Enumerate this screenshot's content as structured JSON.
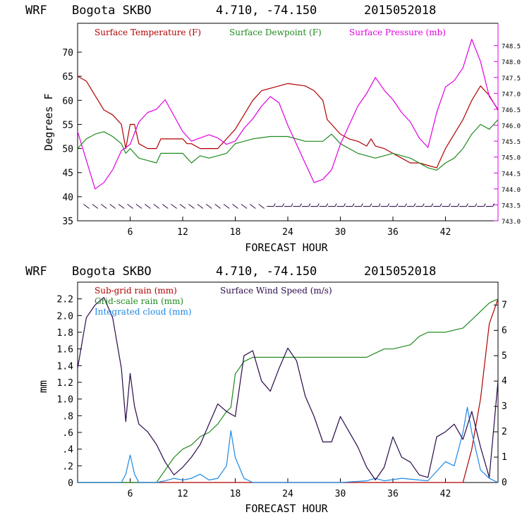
{
  "colors": {
    "temperature": "#b00000",
    "dewpoint": "#1f8a1f",
    "pressure": "#e000e0",
    "subgrid": "#b00000",
    "gridscale": "#1f8a1f",
    "cloud": "#1e88e5",
    "wind": "#2a0a4a"
  },
  "chart_data": [
    {
      "type": "line",
      "header": {
        "model": "WRF",
        "station": "Bogota SKBO",
        "coords": "4.710, -74.150",
        "init": "2015052018"
      },
      "xlabel": "FORECAST HOUR",
      "ylabel": "Degrees F",
      "xlim": [
        0,
        48
      ],
      "ylim": [
        35,
        76
      ],
      "x_ticks": [
        6,
        12,
        18,
        24,
        30,
        36,
        42
      ],
      "x_tick_labels": [
        "6",
        "12",
        "18",
        "24",
        "30",
        "36",
        "42"
      ],
      "y_ticks": [
        35,
        40,
        45,
        50,
        55,
        60,
        65,
        70
      ],
      "y_tick_labels": [
        "35",
        "40",
        "45",
        "50",
        "55",
        "60",
        "65",
        "70"
      ],
      "y2label": "",
      "y2lim": [
        743.0,
        749.2
      ],
      "y2_ticks": [
        743.0,
        743.5,
        744.0,
        744.5,
        745.0,
        745.5,
        746.0,
        746.5,
        747.0,
        747.5,
        748.0,
        748.5
      ],
      "y2_tick_labels": [
        "743.0",
        "743.5",
        "744.0",
        "744.5",
        "745.0",
        "745.5",
        "746.0",
        "746.5",
        "747.0",
        "747.5",
        "748.0",
        "748.5"
      ],
      "legend": [
        "Surface Temperature (F)",
        "Surface Dewpoint (F)",
        "Surface Pressure (mb)"
      ],
      "series": [
        {
          "name": "Surface Temperature (F)",
          "axis": "left",
          "x": [
            0,
            1,
            2,
            3,
            4,
            5,
            5.5,
            6,
            6.5,
            7,
            8,
            9,
            9.5,
            10,
            11,
            12,
            12.5,
            13,
            14,
            15,
            16,
            17,
            17.5,
            18,
            19,
            20,
            21,
            22,
            24,
            26,
            27,
            28,
            28.5,
            29,
            30,
            31,
            32,
            33,
            33.5,
            34,
            35,
            36,
            37,
            38,
            39,
            40,
            41,
            42,
            43,
            44,
            45,
            46,
            47,
            48
          ],
          "values": [
            65,
            64,
            61,
            58,
            57,
            55,
            50,
            55,
            55,
            51,
            50,
            50,
            52,
            52,
            52,
            52,
            51,
            51,
            50,
            50,
            50,
            52,
            53,
            54,
            57,
            60,
            62,
            62.5,
            63.5,
            63,
            62,
            60,
            56,
            55,
            53,
            52,
            51.5,
            50.5,
            52,
            50.5,
            50,
            49,
            48,
            47,
            47,
            46.5,
            46,
            50,
            53,
            56,
            60,
            63,
            61,
            58
          ]
        },
        {
          "name": "Surface Dewpoint (F)",
          "axis": "left",
          "x": [
            0,
            1,
            2,
            3,
            4,
            5,
            5.5,
            6,
            7,
            8,
            9,
            9.5,
            10,
            11,
            12,
            12.5,
            13,
            14,
            15,
            16,
            17,
            17.5,
            18,
            19,
            20,
            22,
            24,
            26,
            28,
            29,
            30,
            32,
            34,
            35,
            36,
            38,
            40,
            41,
            42,
            43,
            44,
            45,
            46,
            47,
            48
          ],
          "values": [
            50,
            52,
            53,
            53.5,
            52.5,
            51,
            49,
            50,
            48,
            47.5,
            47,
            49,
            49,
            49,
            49,
            48,
            47,
            48.5,
            48,
            48.5,
            49,
            50,
            51,
            51.5,
            52,
            52.5,
            52.5,
            51.5,
            51.5,
            53,
            51,
            49,
            48,
            48.5,
            49,
            48,
            46,
            45.5,
            47,
            48,
            50,
            53,
            55,
            54,
            56
          ]
        },
        {
          "name": "Surface Pressure (mb)",
          "axis": "right",
          "x": [
            0,
            1,
            2,
            3,
            4,
            5,
            6,
            7,
            8,
            9,
            10,
            11,
            12,
            13,
            14,
            15,
            16,
            17,
            18,
            19,
            20,
            21,
            22,
            23,
            24,
            25,
            26,
            27,
            28,
            29,
            30,
            31,
            32,
            33,
            34,
            35,
            36,
            37,
            38,
            39,
            40,
            41,
            42,
            43,
            44,
            45,
            46,
            47,
            48
          ],
          "values": [
            745.8,
            744.9,
            744.0,
            744.2,
            744.6,
            745.2,
            745.4,
            746.1,
            746.4,
            746.5,
            746.8,
            746.3,
            745.8,
            745.5,
            745.6,
            745.7,
            745.6,
            745.4,
            745.5,
            745.9,
            746.2,
            746.6,
            746.9,
            746.7,
            746.0,
            745.4,
            744.8,
            744.2,
            744.3,
            744.6,
            745.4,
            746.0,
            746.6,
            747.0,
            747.5,
            747.1,
            746.8,
            746.4,
            746.1,
            745.6,
            745.3,
            746.4,
            747.2,
            747.4,
            747.8,
            748.7,
            748.0,
            746.9,
            746.5
          ]
        }
      ],
      "wind_barbs_label": "wind barbs"
    },
    {
      "type": "line",
      "header": {
        "model": "WRF",
        "station": "Bogota SKBO",
        "coords": "4.710, -74.150",
        "init": "2015052018"
      },
      "xlabel": "FORECAST HOUR",
      "ylabel": "mm",
      "xlim": [
        0,
        48
      ],
      "ylim": [
        0,
        2.4
      ],
      "x_ticks": [
        6,
        12,
        18,
        24,
        30,
        36,
        42
      ],
      "x_tick_labels": [
        "6",
        "12",
        "18",
        "24",
        "30",
        "36",
        "42"
      ],
      "y_ticks": [
        0,
        0.2,
        0.4,
        0.6,
        0.8,
        1.0,
        1.2,
        1.4,
        1.6,
        1.8,
        2.0,
        2.2
      ],
      "y_tick_labels": [
        "0",
        ".2",
        ".4",
        ".6",
        ".8",
        "1.0",
        "1.2",
        "1.4",
        "1.6",
        "1.8",
        "2.0",
        "2.2"
      ],
      "y2lim": [
        0,
        7.9
      ],
      "y2_ticks": [
        0,
        1,
        2,
        3,
        4,
        5,
        6,
        7
      ],
      "y2_tick_labels": [
        "0",
        "1",
        "2",
        "3",
        "4",
        "5",
        "6",
        "7"
      ],
      "legend": [
        "Sub-grid rain (mm)",
        "Surface Wind Speed (m/s)",
        "Grid-scale rain (mm)",
        "Integrated cloud (mm)"
      ],
      "series": [
        {
          "name": "Sub-grid rain (mm)",
          "axis": "left",
          "x": [
            0,
            44,
            45,
            46,
            47,
            48
          ],
          "values": [
            0,
            0,
            0.4,
            1.0,
            1.9,
            2.2
          ]
        },
        {
          "name": "Grid-scale rain (mm)",
          "axis": "left",
          "x": [
            0,
            9,
            10,
            11,
            12,
            13,
            14,
            15,
            16,
            17,
            17.5,
            18,
            19,
            20,
            22,
            26,
            30,
            33,
            34,
            35,
            36,
            38,
            39,
            40,
            42,
            44,
            45,
            46,
            47,
            48
          ],
          "values": [
            0,
            0,
            0.15,
            0.3,
            0.4,
            0.45,
            0.55,
            0.6,
            0.7,
            0.85,
            0.9,
            1.3,
            1.45,
            1.5,
            1.5,
            1.5,
            1.5,
            1.5,
            1.55,
            1.6,
            1.6,
            1.65,
            1.75,
            1.8,
            1.8,
            1.85,
            1.95,
            2.05,
            2.15,
            2.2
          ]
        },
        {
          "name": "Integrated cloud (mm)",
          "axis": "left",
          "x": [
            0,
            5,
            5.5,
            6,
            6.5,
            7,
            9,
            10,
            11,
            12,
            13,
            14,
            15,
            16,
            17,
            17.5,
            18,
            19,
            20,
            30,
            33,
            34,
            35,
            37,
            40,
            42,
            43,
            44,
            44.5,
            45,
            46,
            47,
            48
          ],
          "values": [
            0,
            0,
            0.1,
            0.33,
            0.1,
            0,
            0,
            0.02,
            0.05,
            0.03,
            0.05,
            0.1,
            0.03,
            0.05,
            0.2,
            0.62,
            0.3,
            0.05,
            0,
            0,
            0.02,
            0.05,
            0.02,
            0.05,
            0.02,
            0.25,
            0.2,
            0.6,
            0.9,
            0.6,
            0.15,
            0.05,
            0
          ]
        },
        {
          "name": "Surface Wind Speed (m/s)",
          "axis": "right",
          "x": [
            0,
            1,
            2,
            3,
            4,
            5,
            5.5,
            6,
            6.5,
            7,
            8,
            9,
            10,
            11,
            12,
            13,
            14,
            15,
            16,
            17,
            18,
            19,
            20,
            21,
            22,
            23,
            24,
            25,
            26,
            27,
            28,
            29,
            30,
            31,
            32,
            33,
            34,
            35,
            36,
            37,
            38,
            39,
            40,
            41,
            42,
            43,
            44,
            45,
            46,
            47,
            48
          ],
          "values": [
            4.5,
            6.5,
            7.0,
            7.3,
            6.5,
            4.5,
            2.4,
            4.3,
            3.0,
            2.3,
            2.0,
            1.5,
            0.8,
            0.3,
            0.6,
            1.0,
            1.5,
            2.3,
            3.1,
            2.8,
            2.6,
            5.0,
            5.2,
            4.0,
            3.6,
            4.5,
            5.3,
            4.8,
            3.4,
            2.6,
            1.6,
            1.6,
            2.6,
            2.0,
            1.4,
            0.6,
            0.1,
            0.6,
            1.8,
            1.0,
            0.8,
            0.3,
            0.2,
            1.8,
            2.0,
            2.3,
            1.7,
            2.8,
            1.4,
            0.2,
            4.0
          ]
        }
      ]
    }
  ]
}
